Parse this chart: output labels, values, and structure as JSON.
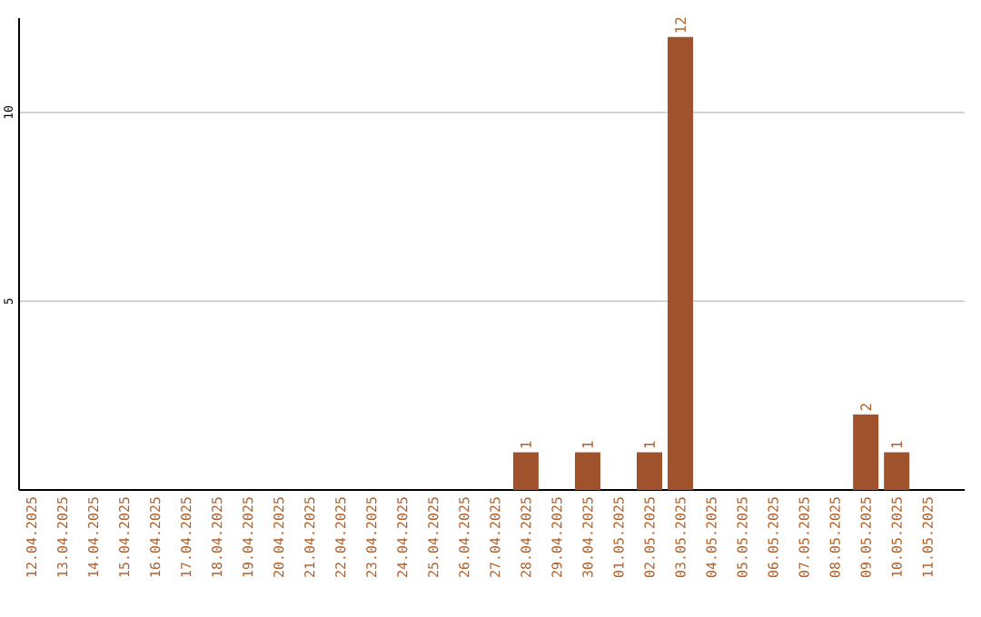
{
  "chart_data": {
    "type": "bar",
    "categories": [
      "12.04.2025",
      "13.04.2025",
      "14.04.2025",
      "15.04.2025",
      "16.04.2025",
      "17.04.2025",
      "18.04.2025",
      "19.04.2025",
      "20.04.2025",
      "21.04.2025",
      "22.04.2025",
      "23.04.2025",
      "24.04.2025",
      "25.04.2025",
      "26.04.2025",
      "27.04.2025",
      "28.04.2025",
      "29.04.2025",
      "30.04.2025",
      "01.05.2025",
      "02.05.2025",
      "03.05.2025",
      "04.05.2025",
      "05.05.2025",
      "06.05.2025",
      "07.05.2025",
      "08.05.2025",
      "09.05.2025",
      "10.05.2025",
      "11.05.2025"
    ],
    "values": [
      0,
      0,
      0,
      0,
      0,
      0,
      0,
      0,
      0,
      0,
      0,
      0,
      0,
      0,
      0,
      0,
      1,
      0,
      1,
      0,
      1,
      12,
      0,
      0,
      0,
      0,
      0,
      2,
      1,
      0
    ],
    "value_labels": [
      null,
      null,
      null,
      null,
      null,
      null,
      null,
      null,
      null,
      null,
      null,
      null,
      null,
      null,
      null,
      null,
      "1",
      null,
      "1",
      null,
      "1",
      "12",
      null,
      null,
      null,
      null,
      null,
      "2",
      "1",
      null
    ],
    "color": "#a0522d",
    "ylim": [
      0,
      12.5
    ],
    "yticks": [
      5,
      10
    ],
    "grid": "y"
  }
}
